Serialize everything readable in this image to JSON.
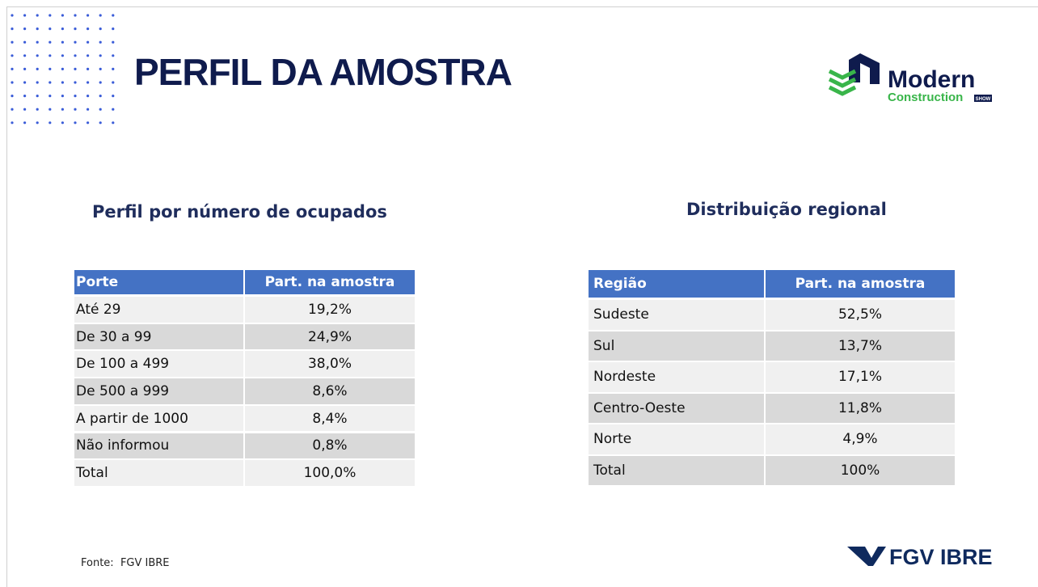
{
  "header": {
    "title": "PERFIL DA AMOSTRA",
    "logo": {
      "name": "Modern",
      "subtitle": "Construction",
      "tag": "SHOW"
    }
  },
  "left_table": {
    "title": "Perfil por número de ocupados",
    "columns": [
      "Porte",
      "Part. na amostra"
    ],
    "rows": [
      [
        "Até 29",
        "19,2%"
      ],
      [
        "De 30 a 99",
        "24,9%"
      ],
      [
        "De 100 a 499",
        "38,0%"
      ],
      [
        "De 500 a 999",
        "8,6%"
      ],
      [
        "A partir de 1000",
        "8,4%"
      ],
      [
        "Não informou",
        "0,8%"
      ],
      [
        "Total",
        "100,0%"
      ]
    ]
  },
  "right_table": {
    "title": "Distribuição regional",
    "columns": [
      "Região",
      "Part. na amostra"
    ],
    "rows": [
      [
        "Sudeste",
        "52,5%"
      ],
      [
        "Sul",
        "13,7%"
      ],
      [
        "Nordeste",
        "17,1%"
      ],
      [
        "Centro-Oeste",
        "11,8%"
      ],
      [
        "Norte",
        "4,9%"
      ],
      [
        "Total",
        "100%"
      ]
    ]
  },
  "footer": {
    "source": "Fonte:  FGV IBRE",
    "logo": "FGV IBRE"
  }
}
